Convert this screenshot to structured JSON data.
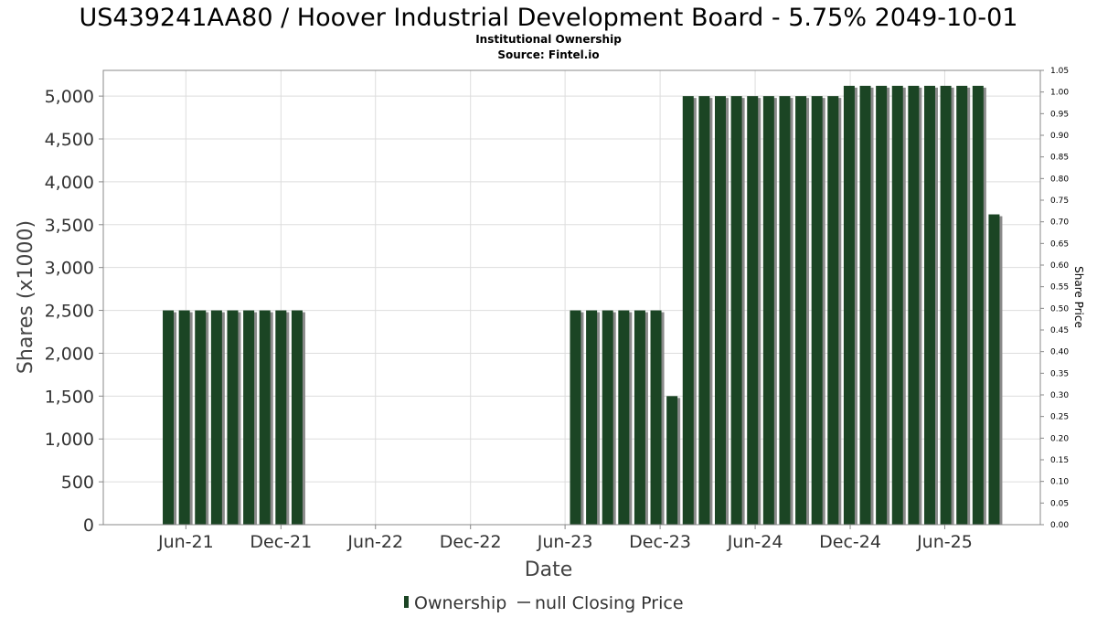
{
  "chart_data": {
    "type": "bar",
    "title": "US439241AA80 / Hoover Industrial Development Board - 5.75% 2049-10-01",
    "subtitle": "Institutional Ownership",
    "source": "Source: Fintel.io",
    "xlabel": "Date",
    "ylabel": "Shares (x1000)",
    "y2label": "Share Price",
    "ylim": [
      0,
      5300
    ],
    "y2lim": [
      0,
      1.05
    ],
    "yticks": [
      0,
      500,
      1000,
      1500,
      2000,
      2500,
      3000,
      3500,
      4000,
      4500,
      5000
    ],
    "ytick_labels": [
      "0",
      "500",
      "1,000",
      "1,500",
      "2,000",
      "2,500",
      "3,000",
      "3,500",
      "4,000",
      "4,500",
      "5,000"
    ],
    "y2ticks": [
      0,
      0.05,
      0.1,
      0.15,
      0.2,
      0.25,
      0.3,
      0.35,
      0.4,
      0.45,
      0.5,
      0.55,
      0.6,
      0.65,
      0.7,
      0.75,
      0.8,
      0.85,
      0.9,
      0.95,
      1.0,
      1.05
    ],
    "y2tick_labels": [
      "0.00",
      "0.05",
      "0.10",
      "0.15",
      "0.20",
      "0.25",
      "0.30",
      "0.35",
      "0.40",
      "0.45",
      "0.50",
      "0.55",
      "0.60",
      "0.65",
      "0.70",
      "0.75",
      "0.80",
      "0.85",
      "0.90",
      "0.95",
      "1.00",
      "1.05"
    ],
    "xticks": [
      "2021-06",
      "2021-12",
      "2022-06",
      "2022-12",
      "2023-06",
      "2023-12",
      "2024-06",
      "2024-12",
      "2025-06"
    ],
    "xtick_labels": [
      "Jun-21",
      "Dec-21",
      "Jun-22",
      "Dec-22",
      "Jun-23",
      "Dec-23",
      "Jun-24",
      "Dec-24",
      "Jun-25"
    ],
    "xlim": [
      "2020-12-24",
      "2025-12-02"
    ],
    "grid": true,
    "legend": {
      "placement": "bottom-center",
      "entries": [
        {
          "label": "Ownership",
          "kind": "bar"
        },
        {
          "label": "null Closing Price",
          "kind": "line"
        }
      ]
    },
    "colors": {
      "bar": "#1b4524",
      "bar_shadow": "#8a8a8a",
      "grid": "#dddddd",
      "frame": "#888888"
    },
    "series": [
      {
        "name": "Ownership",
        "dates": [
          "2021-04-28",
          "2021-05-29",
          "2021-06-29",
          "2021-07-30",
          "2021-08-30",
          "2021-09-30",
          "2021-10-31",
          "2021-12-01",
          "2022-01-01",
          "2023-06-21",
          "2023-07-22",
          "2023-08-22",
          "2023-09-22",
          "2023-10-23",
          "2023-11-23",
          "2023-12-24",
          "2024-01-24",
          "2024-02-24",
          "2024-03-26",
          "2024-04-26",
          "2024-05-27",
          "2024-06-27",
          "2024-07-28",
          "2024-08-28",
          "2024-09-28",
          "2024-10-29",
          "2024-11-29",
          "2024-12-30",
          "2025-01-30",
          "2025-03-02",
          "2025-04-02",
          "2025-05-03",
          "2025-06-03",
          "2025-07-04",
          "2025-08-04",
          "2025-09-04"
        ],
        "values": [
          2500,
          2500,
          2500,
          2500,
          2500,
          2500,
          2500,
          2500,
          2500,
          2500,
          2500,
          2500,
          2500,
          2500,
          2500,
          1500,
          5000,
          5000,
          5000,
          5000,
          5000,
          5000,
          5000,
          5000,
          5000,
          5000,
          5120,
          5120,
          5120,
          5120,
          5120,
          5120,
          5120,
          5120,
          5120,
          3620
        ]
      }
    ]
  }
}
